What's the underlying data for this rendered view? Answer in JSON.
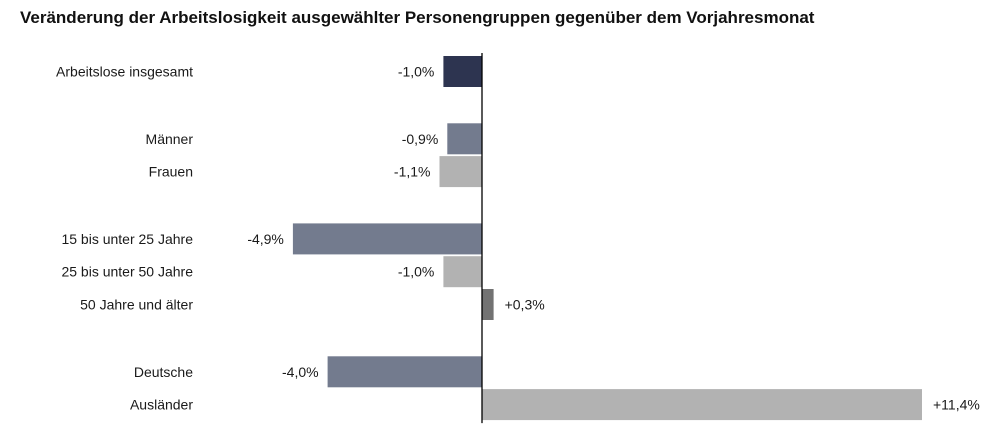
{
  "chart_data": {
    "type": "bar",
    "orientation": "horizontal",
    "title": "Veränderung der Arbeitslosigkeit ausgewählter Personengruppen gegenüber dem Vorjahresmonat",
    "xlabel": "",
    "ylabel": "",
    "unit": "%",
    "xlim": [
      -5.0,
      11.4
    ],
    "grid": false,
    "legend": "none",
    "categories": [
      "Arbeitslose insgesamt",
      "Männer",
      "Frauen",
      "15 bis unter 25 Jahre",
      "25 bis unter 50 Jahre",
      "50 Jahre und älter",
      "Deutsche",
      "Ausländer"
    ],
    "groups": [
      0,
      1,
      1,
      2,
      2,
      2,
      3,
      3
    ],
    "values": [
      -1.0,
      -0.9,
      -1.1,
      -4.9,
      -1.0,
      0.3,
      -4.0,
      11.4
    ],
    "value_labels": [
      "-1,0%",
      "-0,9%",
      "-1,1%",
      "-4,9%",
      "-1,0%",
      "+0,3%",
      "-4,0%",
      "+11,4%"
    ],
    "colors": [
      "#2d3450",
      "#737b8e",
      "#b2b2b2",
      "#737b8e",
      "#b2b2b2",
      "#727272",
      "#737b8e",
      "#b2b2b2"
    ]
  }
}
